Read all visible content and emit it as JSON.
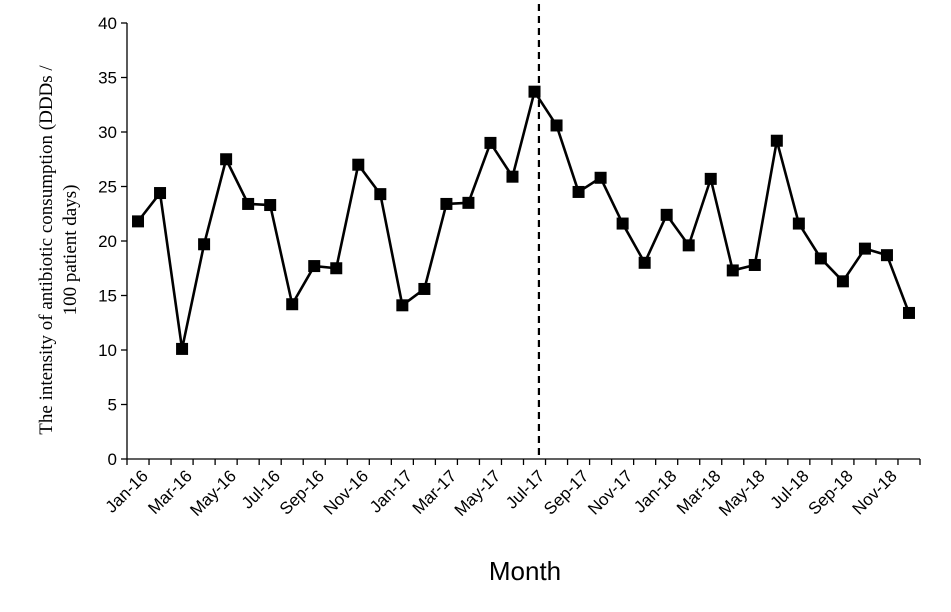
{
  "chart_data": {
    "type": "line",
    "title": "",
    "xlabel": "Month",
    "ylabel_lines": [
      "The intensity of antibiotic consumption (DDDs /",
      "100 patient days)"
    ],
    "ylim": [
      0,
      40
    ],
    "yticks": [
      0,
      5,
      10,
      15,
      20,
      25,
      30,
      35,
      40
    ],
    "grid": false,
    "legend": "none",
    "x_tick_labels": [
      "Jan-16",
      "Mar-16",
      "May-16",
      "Jul-16",
      "Sep-16",
      "Nov-16",
      "Jan-17",
      "Mar-17",
      "May-17",
      "Jul-17",
      "Sep-17",
      "Nov-17",
      "Jan-18",
      "Mar-18",
      "May-18",
      "Jul-18",
      "Sep-18",
      "Nov-18"
    ],
    "x": [
      "Jan-16",
      "Feb-16",
      "Mar-16",
      "Apr-16",
      "May-16",
      "Jun-16",
      "Jul-16",
      "Aug-16",
      "Sep-16",
      "Oct-16",
      "Nov-16",
      "Dec-16",
      "Jan-17",
      "Feb-17",
      "Mar-17",
      "Apr-17",
      "May-17",
      "Jun-17",
      "Jul-17",
      "Aug-17",
      "Sep-17",
      "Oct-17",
      "Nov-17",
      "Dec-17",
      "Jan-18",
      "Feb-18",
      "Mar-18",
      "Apr-18",
      "May-18",
      "Jun-18",
      "Jul-18",
      "Aug-18",
      "Sep-18",
      "Oct-18",
      "Nov-18",
      "Dec-18"
    ],
    "series": [
      {
        "values": [
          21.8,
          24.4,
          10.1,
          19.7,
          27.5,
          23.4,
          23.3,
          14.2,
          17.7,
          17.5,
          27.0,
          24.3,
          14.1,
          15.6,
          23.4,
          23.5,
          29.0,
          25.9,
          33.7,
          30.6,
          24.5,
          25.8,
          21.6,
          18.0,
          22.4,
          19.6,
          25.7,
          17.3,
          17.8,
          29.2,
          21.6,
          18.4,
          16.3,
          19.3,
          18.7,
          13.4
        ],
        "color": "#000000",
        "marker": "square"
      }
    ],
    "vline": {
      "position_months_after_first": 18.2,
      "style": "dashed",
      "color": "#000000"
    }
  }
}
